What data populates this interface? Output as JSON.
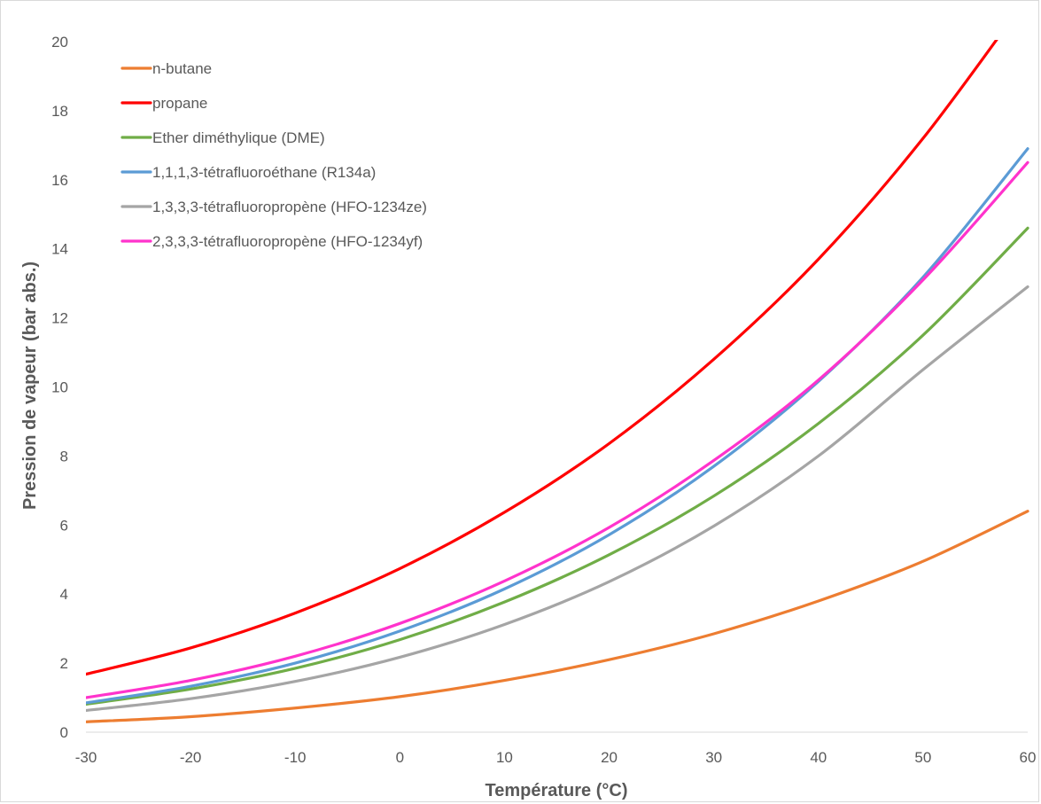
{
  "chart_data": {
    "type": "line",
    "title": "",
    "xlabel": "Température (°C)",
    "ylabel": "Pression de vapeur (bar abs.)",
    "xlim": [
      -30,
      60
    ],
    "ylim": [
      0,
      20
    ],
    "xticks": [
      "-30",
      "-20",
      "-10",
      "0",
      "10",
      "20",
      "30",
      "40",
      "50",
      "60"
    ],
    "yticks": [
      "0",
      "2",
      "4",
      "6",
      "8",
      "10",
      "12",
      "14",
      "16",
      "18",
      "20"
    ],
    "grid": false,
    "legend_position": "top-left",
    "x": [
      -30,
      -20,
      -10,
      0,
      10,
      20,
      30,
      40,
      50,
      60
    ],
    "series": [
      {
        "name": "n-butane",
        "color": "#ED7D31",
        "values": [
          0.3,
          0.45,
          0.7,
          1.03,
          1.5,
          2.1,
          2.85,
          3.8,
          4.95,
          6.4
        ]
      },
      {
        "name": "propane",
        "color": "#FF0000",
        "values": [
          1.68,
          2.44,
          3.45,
          4.74,
          6.37,
          8.36,
          10.8,
          13.7,
          17.2,
          21.3
        ]
      },
      {
        "name": "Ether diméthylique (DME)",
        "color": "#70AD47",
        "values": [
          0.81,
          1.25,
          1.85,
          2.68,
          3.77,
          5.14,
          6.84,
          8.94,
          11.5,
          14.6
        ]
      },
      {
        "name": "1,1,1,3-tétrafluoroéthane (R134a)",
        "color": "#5B9BD5",
        "values": [
          0.85,
          1.33,
          2.0,
          2.93,
          4.15,
          5.72,
          7.7,
          10.16,
          13.18,
          16.9
        ]
      },
      {
        "name": "1,3,3,3-tétrafluoropropène (HFO-1234ze)",
        "color": "#A5A5A5",
        "values": [
          0.63,
          0.97,
          1.47,
          2.17,
          3.12,
          4.36,
          5.97,
          8.0,
          10.5,
          12.9
        ]
      },
      {
        "name": "2,3,3,3-tétrafluoropropène (HFO-1234yf)",
        "color": "#FF33CC",
        "values": [
          1.0,
          1.5,
          2.2,
          3.15,
          4.38,
          5.93,
          7.87,
          10.2,
          13.1,
          16.5
        ]
      }
    ]
  }
}
